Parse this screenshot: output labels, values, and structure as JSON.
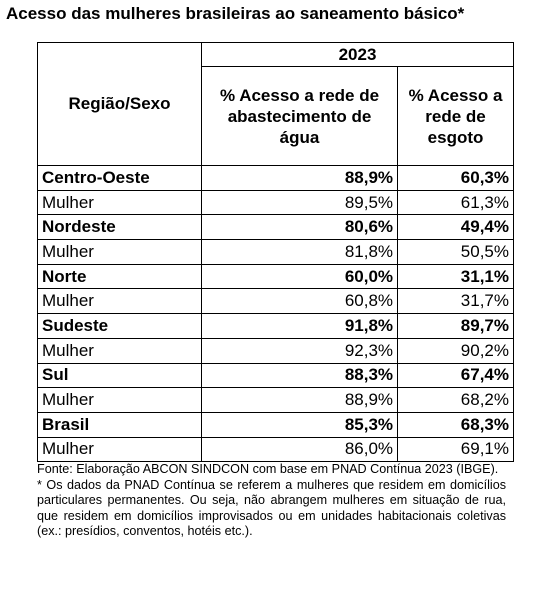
{
  "title": "Acesso das mulheres brasileiras ao saneamento básico*",
  "table": {
    "corner": "Região/Sexo",
    "year": "2023",
    "columns": [
      "% Acesso a rede de abastecimento de água",
      "% Acesso a rede de esgoto"
    ],
    "rows": [
      [
        "Centro-Oeste",
        "88,9%",
        "60,3%"
      ],
      [
        "Mulher",
        "89,5%",
        "61,3%"
      ],
      [
        "Nordeste",
        "80,6%",
        "49,4%"
      ],
      [
        "Mulher",
        "81,8%",
        "50,5%"
      ],
      [
        "Norte",
        "60,0%",
        "31,1%"
      ],
      [
        "Mulher",
        "60,8%",
        "31,7%"
      ],
      [
        "Sudeste",
        "91,8%",
        "89,7%"
      ],
      [
        "Mulher",
        "92,3%",
        "90,2%"
      ],
      [
        "Sul",
        "88,3%",
        "67,4%"
      ],
      [
        "Mulher",
        "88,9%",
        "68,2%"
      ],
      [
        "Brasil",
        "85,3%",
        "68,3%"
      ],
      [
        "Mulher",
        "86,0%",
        "69,1%"
      ]
    ]
  },
  "notes": [
    "Fonte: Elaboração ABCON SINDCON com base em PNAD Contínua 2023 (IBGE).",
    "* Os dados da PNAD Contínua se referem a mulheres que residem em domicílios particulares permanentes. Ou seja, não abrangem mulheres em situação de rua, que residem em domicílios improvisados ou em unidades habitacionais coletivas (ex.: presídios, conventos, hotéis etc.)."
  ]
}
